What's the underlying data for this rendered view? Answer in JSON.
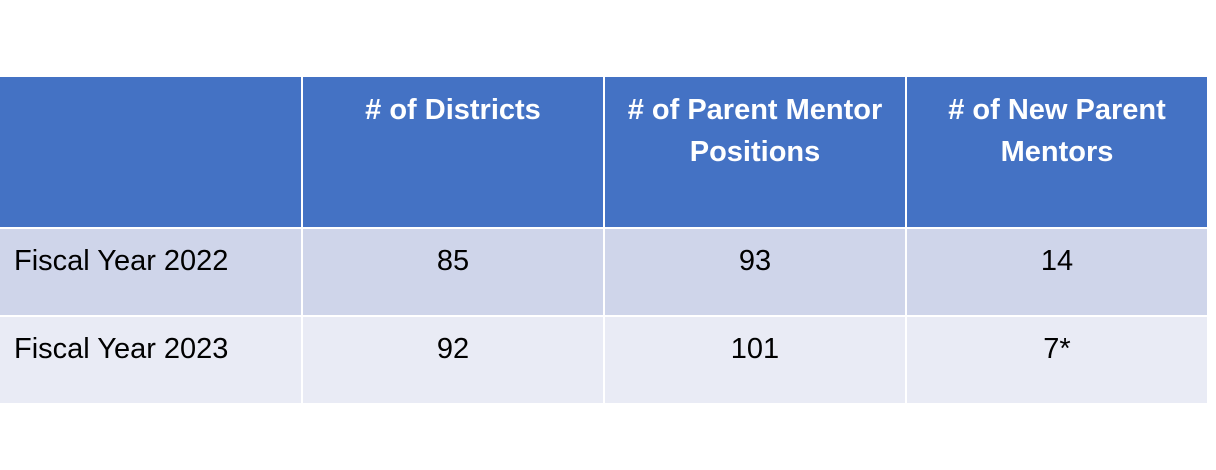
{
  "table": {
    "headers": [
      "",
      "# of Districts",
      "# of Parent Mentor Positions",
      "# of New Parent Mentors"
    ],
    "rows": [
      [
        "Fiscal Year 2022",
        "85",
        "93",
        "14"
      ],
      [
        "Fiscal Year 2023",
        "92",
        "101",
        "7*"
      ]
    ],
    "colors": {
      "header_bg": "#4472c4",
      "header_text": "#ffffff",
      "row_odd_bg": "#cfd5ea",
      "row_even_bg": "#e9ebf5"
    }
  }
}
